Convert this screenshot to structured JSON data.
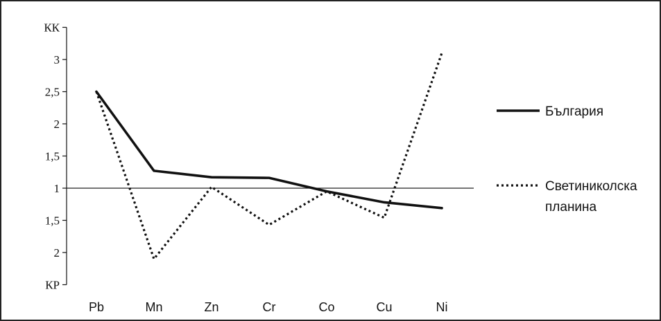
{
  "chart_data": {
    "type": "line",
    "categories": [
      "Pb",
      "Mn",
      "Zn",
      "Cr",
      "Co",
      "Cu",
      "Ni"
    ],
    "y_ticks": [
      "КК",
      "3",
      "2,5",
      "2",
      "1,5",
      "1",
      "1,5",
      "2",
      "КР"
    ],
    "y_tick_values": [
      3.5,
      3,
      2.5,
      2,
      1.5,
      1,
      0.5,
      0,
      -0.5
    ],
    "ylim": [
      -0.5,
      3.5
    ],
    "reference_line": 1,
    "series": [
      {
        "name": "България",
        "style": "solid",
        "values": [
          2.5,
          1.27,
          1.17,
          1.16,
          0.95,
          0.78,
          0.69
        ]
      },
      {
        "name": "Светиниколска планина",
        "style": "dotted",
        "values": [
          2.5,
          -0.1,
          1.02,
          0.43,
          0.95,
          0.54,
          3.1
        ]
      }
    ],
    "legend": {
      "position": "right",
      "items": [
        {
          "lines": [
            "България"
          ]
        },
        {
          "lines": [
            "Светиниколска",
            "планина"
          ]
        }
      ]
    }
  }
}
